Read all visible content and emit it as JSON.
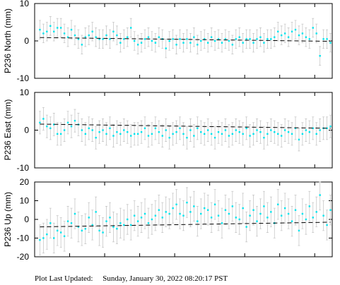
{
  "footer": {
    "label": "Plot Last Updated:",
    "timestamp": "Sunday, January 30, 2022 08:20:17 PST"
  },
  "style": {
    "point_color": "#00e5ee",
    "errorbar_color": "#c8c8c8",
    "trend_color": "#000000"
  },
  "chart_data": [
    {
      "type": "scatter",
      "ylabel": "P236 North (mm)",
      "ylim": [
        -10,
        10
      ],
      "yticks": [
        10,
        0,
        -10
      ],
      "grid": false,
      "x_count": 170,
      "x": [
        3,
        5,
        7,
        9,
        11,
        13,
        15,
        17,
        19,
        21,
        23,
        25,
        27,
        29,
        31,
        33,
        35,
        37,
        39,
        41,
        43,
        45,
        47,
        49,
        51,
        53,
        55,
        57,
        59,
        61,
        63,
        65,
        67,
        69,
        71,
        73,
        75,
        77,
        79,
        81,
        83,
        85,
        87,
        89,
        91,
        93,
        95,
        97,
        99,
        101,
        103,
        105,
        107,
        109,
        111,
        113,
        115,
        117,
        119,
        121,
        123,
        125,
        127,
        129,
        131,
        133,
        135,
        137,
        139,
        141,
        143,
        145,
        147,
        149,
        151,
        153,
        155,
        157,
        159,
        161,
        163,
        165,
        167,
        169
      ],
      "y": [
        3.0,
        2.0,
        2.5,
        4.0,
        2.5,
        3.5,
        3.5,
        2.0,
        1.0,
        3.0,
        1.5,
        0.5,
        -1.0,
        1.0,
        1.5,
        2.5,
        1.0,
        0.5,
        0.5,
        1.5,
        0.5,
        2.5,
        1.5,
        -0.5,
        0.5,
        1.0,
        3.5,
        0.0,
        -1.0,
        -0.5,
        0.5,
        1.0,
        0.0,
        -0.5,
        1.0,
        0.5,
        -2.0,
        0.0,
        0.5,
        -1.0,
        0.5,
        -0.5,
        0.5,
        -0.5,
        1.0,
        -1.0,
        0.0,
        0.5,
        -0.5,
        1.0,
        0.0,
        0.5,
        -0.5,
        0.5,
        0.0,
        -1.0,
        0.5,
        1.0,
        -0.5,
        0.5,
        0.5,
        -0.5,
        0.5,
        1.0,
        -0.5,
        0.5,
        0.5,
        1.0,
        2.5,
        1.5,
        2.0,
        1.0,
        2.5,
        3.0,
        1.5,
        2.0,
        1.0,
        0.5,
        3.5,
        2.0,
        -4.0,
        0.5,
        0.5,
        -0.5
      ],
      "err": 2.5,
      "trend": [
        0.9,
        -0.1
      ]
    },
    {
      "type": "scatter",
      "ylabel": "P236 East (mm)",
      "ylim": [
        -10,
        10
      ],
      "yticks": [
        10,
        0,
        -10
      ],
      "grid": false,
      "x_count": 170,
      "x": [
        3,
        5,
        7,
        9,
        11,
        13,
        15,
        17,
        19,
        21,
        23,
        25,
        27,
        29,
        31,
        33,
        35,
        37,
        39,
        41,
        43,
        45,
        47,
        49,
        51,
        53,
        55,
        57,
        59,
        61,
        63,
        65,
        67,
        69,
        71,
        73,
        75,
        77,
        79,
        81,
        83,
        85,
        87,
        89,
        91,
        93,
        95,
        97,
        99,
        101,
        103,
        105,
        107,
        109,
        111,
        113,
        115,
        117,
        119,
        121,
        123,
        125,
        127,
        129,
        131,
        133,
        135,
        137,
        139,
        141,
        143,
        145,
        147,
        149,
        151,
        153,
        155,
        157,
        159,
        161,
        163,
        165,
        167,
        169
      ],
      "y": [
        2.0,
        3.0,
        1.0,
        0.5,
        1.5,
        -1.0,
        -1.0,
        0.0,
        2.0,
        1.0,
        2.5,
        1.5,
        0.0,
        -1.0,
        0.5,
        0.0,
        -2.0,
        -0.5,
        0.0,
        -1.0,
        0.5,
        -1.5,
        -0.5,
        -1.0,
        0.0,
        -0.5,
        -1.5,
        -1.0,
        -1.0,
        -0.5,
        0.5,
        -1.5,
        -1.0,
        0.5,
        -0.5,
        -1.5,
        0.0,
        -2.0,
        -1.0,
        -0.5,
        0.5,
        -1.0,
        -2.0,
        0.0,
        -1.5,
        0.5,
        -0.5,
        -1.0,
        0.0,
        -1.0,
        -2.0,
        -0.5,
        -1.0,
        0.0,
        -1.5,
        -1.0,
        0.0,
        -0.5,
        -1.0,
        0.5,
        -1.5,
        -1.0,
        0.0,
        -0.5,
        -2.0,
        -1.0,
        0.0,
        -0.5,
        -1.0,
        -1.5,
        0.0,
        -0.5,
        -1.0,
        0.5,
        -2.5,
        -1.0,
        0.0,
        -0.5,
        0.5,
        -1.0,
        0.0,
        0.5,
        0.5,
        1.0
      ],
      "err": 3.0,
      "trend": [
        1.6,
        0.5
      ]
    },
    {
      "type": "scatter",
      "ylabel": "P236 Up (mm)",
      "ylim": [
        -20,
        20
      ],
      "yticks": [
        20,
        10,
        0,
        -10,
        -20
      ],
      "grid": false,
      "x_count": 170,
      "x": [
        3,
        5,
        7,
        9,
        11,
        13,
        15,
        17,
        19,
        21,
        23,
        25,
        27,
        29,
        31,
        33,
        35,
        37,
        39,
        41,
        43,
        45,
        47,
        49,
        51,
        53,
        55,
        57,
        59,
        61,
        63,
        65,
        67,
        69,
        71,
        73,
        75,
        77,
        79,
        81,
        83,
        85,
        87,
        89,
        91,
        93,
        95,
        97,
        99,
        101,
        103,
        105,
        107,
        109,
        111,
        113,
        115,
        117,
        119,
        121,
        123,
        125,
        127,
        129,
        131,
        133,
        135,
        137,
        139,
        141,
        143,
        145,
        147,
        149,
        151,
        153,
        155,
        157,
        159,
        161,
        163,
        165,
        167,
        169
      ],
      "y": [
        -11,
        -10,
        -8,
        -2,
        -10,
        -6,
        -7,
        -9,
        -1,
        -2,
        3,
        -4,
        -6,
        -5,
        1,
        -3,
        4,
        -6,
        -7,
        -1,
        1,
        -4,
        -5,
        -2,
        -3,
        0,
        -3,
        2,
        -1,
        1,
        3,
        -2,
        0,
        2,
        5,
        1,
        4,
        3,
        6,
        8,
        3,
        2,
        9,
        4,
        7,
        -1,
        3,
        6,
        5,
        1,
        8,
        2,
        -2,
        5,
        3,
        7,
        1,
        0,
        6,
        -4,
        2,
        5,
        -1,
        3,
        7,
        1,
        4,
        -2,
        8,
        2,
        6,
        3,
        -1,
        5,
        -6,
        3,
        0,
        7,
        1,
        4,
        13,
        2,
        -3,
        5
      ],
      "err": 8.0,
      "trend": [
        -4.0,
        -1.5
      ]
    }
  ]
}
